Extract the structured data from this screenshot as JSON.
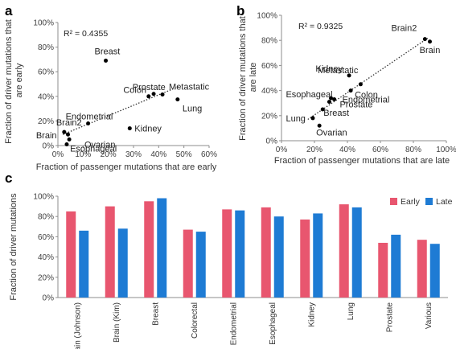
{
  "chart_data": [
    {
      "panel": "a",
      "type": "scatter",
      "xlabel": "Fraction of passenger mutations that are early",
      "ylabel": "Fraction of driver mutations that are early",
      "xlim": [
        0,
        60
      ],
      "ylim": [
        0,
        100
      ],
      "xticks": [
        0,
        10,
        20,
        30,
        40,
        50,
        60
      ],
      "yticks": [
        0,
        20,
        40,
        60,
        80,
        100
      ],
      "tick_suffix": "%",
      "annotation": "R² = 0.4355",
      "trendline": {
        "style": "dotted",
        "from": [
          2,
          9
        ],
        "to": [
          48,
          48
        ]
      },
      "points": [
        {
          "label": "Breast",
          "x": 19,
          "y": 69
        },
        {
          "label": "Prostate",
          "x": 36,
          "y": 40
        },
        {
          "label": "Colon",
          "x": 38,
          "y": 42
        },
        {
          "label": "Metastatic",
          "x": 41.5,
          "y": 41.5
        },
        {
          "label": "Lung",
          "x": 47.5,
          "y": 37.5
        },
        {
          "label": "Kidney",
          "x": 28.5,
          "y": 14
        },
        {
          "label": "Endometrial",
          "x": 12,
          "y": 18
        },
        {
          "label": "Brain2",
          "x": 2.5,
          "y": 11
        },
        {
          "label": "Brain",
          "x": 4,
          "y": 9
        },
        {
          "label": "Esophageal",
          "x": 4.5,
          "y": 5
        },
        {
          "label": "Ovarian",
          "x": 3.5,
          "y": 1
        }
      ]
    },
    {
      "panel": "b",
      "type": "scatter",
      "xlabel": "Fraction of passenger mutations that are late",
      "ylabel": "Fraction of driver mutations that are late",
      "xlim": [
        0,
        100
      ],
      "ylim": [
        0,
        100
      ],
      "xticks": [
        0,
        20,
        40,
        60,
        80,
        100
      ],
      "yticks": [
        0,
        20,
        40,
        60,
        80,
        100
      ],
      "tick_suffix": "%",
      "annotation": "R² = 0.9325",
      "trendline": {
        "style": "dotted",
        "from": [
          16,
          17
        ],
        "to": [
          89,
          82
        ]
      },
      "points": [
        {
          "label": "Brain2",
          "x": 87,
          "y": 81
        },
        {
          "label": "Brain",
          "x": 90,
          "y": 79
        },
        {
          "label": "Kidney",
          "x": 41,
          "y": 52
        },
        {
          "label": "Metastatic",
          "x": 48,
          "y": 45
        },
        {
          "label": "Colon",
          "x": 42,
          "y": 40
        },
        {
          "label": "Esophageal",
          "x": 30,
          "y": 34
        },
        {
          "label": "Endometrial",
          "x": 32,
          "y": 33
        },
        {
          "label": "Prostate",
          "x": 29,
          "y": 31
        },
        {
          "label": "Breast",
          "x": 25,
          "y": 25
        },
        {
          "label": "Lung",
          "x": 19,
          "y": 18
        },
        {
          "label": "Ovarian",
          "x": 23,
          "y": 12
        }
      ]
    },
    {
      "panel": "c",
      "type": "bar",
      "ylabel": "Fraction of driver mutations",
      "ylim": [
        0,
        100
      ],
      "yticks": [
        0,
        20,
        40,
        60,
        80,
        100
      ],
      "tick_suffix": "%",
      "legend": "top-right",
      "categories": [
        "Brain (Johnson)",
        "Brain (Kim)",
        "Breast",
        "Colorectal",
        "Endometrial",
        "Esophageal",
        "Kidney",
        "Lung",
        "Prostate",
        "Various"
      ],
      "series": [
        {
          "name": "Early",
          "color": "#E8566F",
          "values": [
            85,
            90,
            95,
            67,
            87,
            89,
            77,
            92,
            54,
            57
          ]
        },
        {
          "name": "Late",
          "color": "#1E7BD4",
          "values": [
            66,
            68,
            98,
            65,
            86,
            80,
            83,
            89,
            62,
            53
          ]
        }
      ]
    }
  ]
}
